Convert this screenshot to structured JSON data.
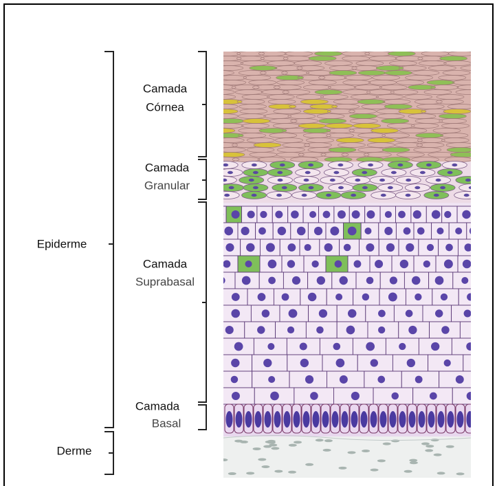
{
  "layers": [
    {
      "line1": "Camada",
      "line2": "Córnea"
    },
    {
      "line1": "Camada",
      "line2": "Granular"
    },
    {
      "line1": "Camada",
      "line2": "Suprabasal"
    },
    {
      "line1": "Camada",
      "line2": "Basal"
    }
  ],
  "regions": [
    {
      "label": "Epiderme"
    },
    {
      "label": "Derme"
    }
  ]
}
